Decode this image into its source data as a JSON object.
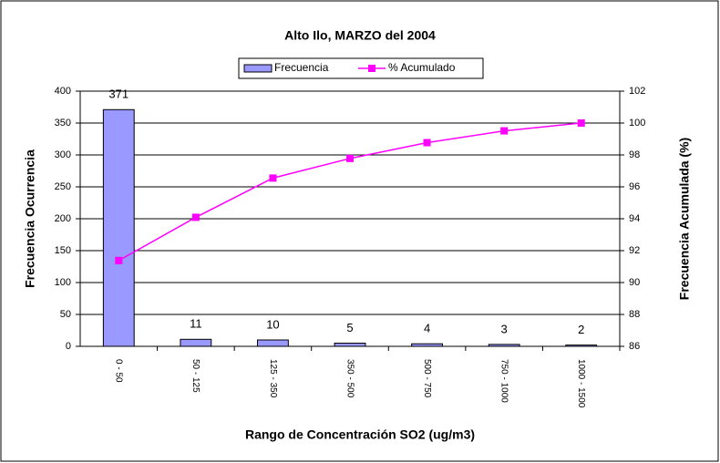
{
  "chart_data": {
    "type": "bar",
    "title": "Alto Ilo, MARZO del 2004",
    "x_label": "Rango de Concentración SO2 (ug/m3)",
    "y_label": "Frecuencia Ocurrencia",
    "y2_label": "Frecuencia Acumulada (%)",
    "categories": [
      "0 - 50",
      "50 - 125",
      "125 - 350",
      "350 - 500",
      "500 - 750",
      "750 - 1000",
      "1000 - 1500"
    ],
    "series": [
      {
        "name": "Frecuencia",
        "type": "bar",
        "color": "#9999ff",
        "values": [
          371,
          11,
          10,
          5,
          4,
          3,
          2
        ],
        "show_labels": true
      },
      {
        "name": "% Acumulado",
        "type": "line",
        "axis": "y2",
        "color": "#ff00ff",
        "values": [
          91.38,
          94.09,
          96.55,
          97.78,
          98.77,
          99.51,
          100
        ]
      }
    ],
    "ylim": [
      0,
      400
    ],
    "yticks": [
      0,
      50,
      100,
      150,
      200,
      250,
      300,
      350,
      400
    ],
    "y2lim": [
      86,
      102
    ],
    "y2ticks": [
      86,
      88,
      90,
      92,
      94,
      96,
      98,
      100,
      102
    ],
    "grid": true,
    "legend": "top"
  }
}
